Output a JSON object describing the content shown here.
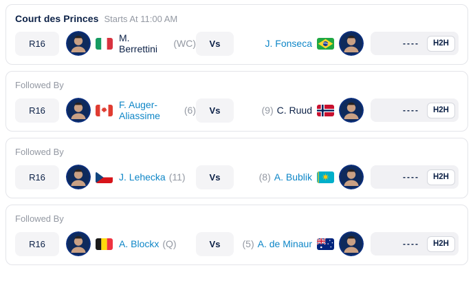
{
  "colors": {
    "navy_text": "#0b2046",
    "link_blue": "#0e86c7",
    "muted_gray": "#9398a2",
    "badge_bg": "#f4f4f6",
    "panel_bg": "#f1f1f4",
    "card_border": "#e3e4e9"
  },
  "matches": [
    {
      "header_type": "court",
      "header": {
        "title": "Court des Princes",
        "subtitle": "Starts At 11:00 AM"
      },
      "round": "R16",
      "vs_label": "Vs",
      "score_placeholder": "----",
      "h2h_label": "H2H",
      "player1": {
        "name": "M. Berrettini",
        "tag": "(WC)",
        "flag": "italy",
        "name_color": "navy"
      },
      "player2": {
        "tag": "",
        "name": "J. Fonseca",
        "flag": "brazil",
        "name_color": "blue"
      }
    },
    {
      "header_type": "followed",
      "header": {
        "title": "Followed By",
        "subtitle": ""
      },
      "round": "R16",
      "vs_label": "Vs",
      "score_placeholder": "----",
      "h2h_label": "H2H",
      "player1": {
        "name": "F. Auger-Aliassime",
        "tag": "(6)",
        "flag": "canada",
        "name_color": "blue"
      },
      "player2": {
        "tag": "(9)",
        "name": "C. Ruud",
        "flag": "norway",
        "name_color": "navy"
      }
    },
    {
      "header_type": "followed",
      "header": {
        "title": "Followed By",
        "subtitle": ""
      },
      "round": "R16",
      "vs_label": "Vs",
      "score_placeholder": "----",
      "h2h_label": "H2H",
      "player1": {
        "name": "J. Lehecka",
        "tag": "(11)",
        "flag": "czechia",
        "name_color": "blue"
      },
      "player2": {
        "tag": "(8)",
        "name": "A. Bublik",
        "flag": "kazakhstan",
        "name_color": "blue"
      }
    },
    {
      "header_type": "followed",
      "header": {
        "title": "Followed By",
        "subtitle": ""
      },
      "round": "R16",
      "vs_label": "Vs",
      "score_placeholder": "----",
      "h2h_label": "H2H",
      "player1": {
        "name": "A. Blockx",
        "tag": "(Q)",
        "flag": "belgium",
        "name_color": "blue"
      },
      "player2": {
        "tag": "(5)",
        "name": "A. de Minaur",
        "flag": "australia",
        "name_color": "blue"
      }
    }
  ]
}
